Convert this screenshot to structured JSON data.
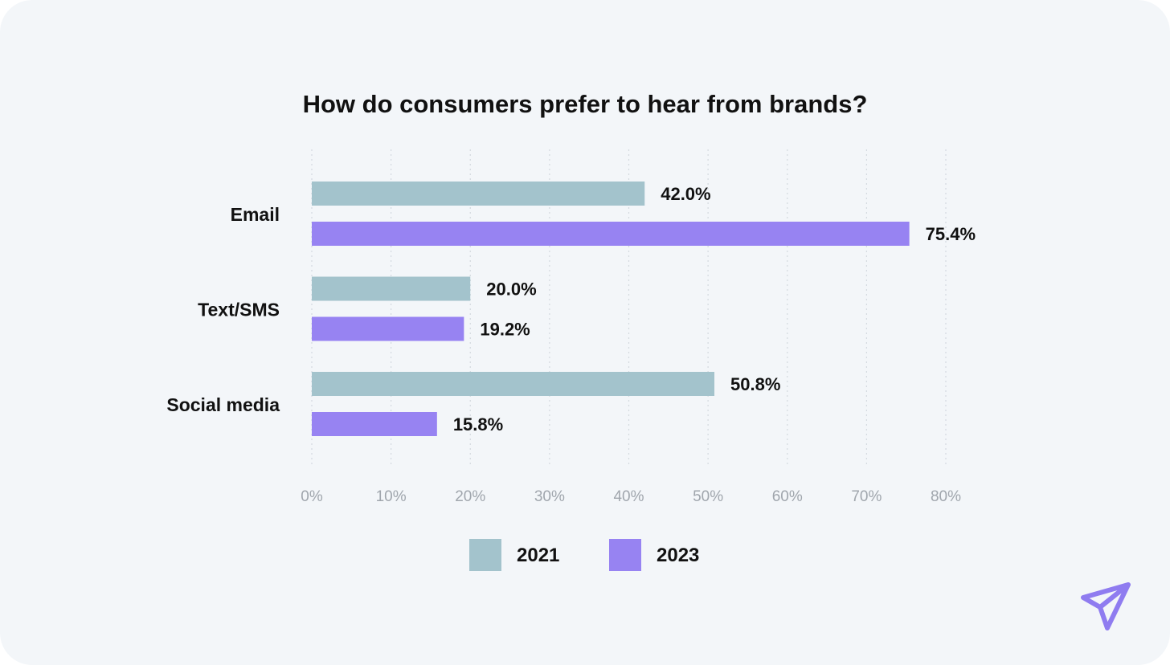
{
  "chart_data": {
    "type": "bar",
    "orientation": "horizontal",
    "title": "How do consumers prefer to hear from brands?",
    "categories": [
      "Email",
      "Text/SMS",
      "Social media"
    ],
    "series": [
      {
        "name": "2021",
        "color": "#a3c3cc",
        "values": [
          42.0,
          20.0,
          50.8
        ],
        "labels": [
          "42.0%",
          "20.0%",
          "50.8%"
        ]
      },
      {
        "name": "2023",
        "color": "#9783f2",
        "values": [
          75.4,
          19.2,
          15.8
        ],
        "labels": [
          "75.4%",
          "19.2%",
          "15.8%"
        ]
      }
    ],
    "xlim": [
      0,
      80
    ],
    "xticks": [
      0,
      10,
      20,
      30,
      40,
      50,
      60,
      70,
      80
    ],
    "xtick_labels": [
      "0%",
      "10%",
      "20%",
      "30%",
      "40%",
      "50%",
      "60%",
      "70%",
      "80%"
    ],
    "xlabel": "",
    "ylabel": "",
    "grid": "vertical-dotted",
    "legend_position": "bottom"
  },
  "legend": {
    "items": [
      {
        "label": "2021",
        "color": "#a3c3cc"
      },
      {
        "label": "2023",
        "color": "#9783f2"
      }
    ]
  },
  "brand": {
    "logo_icon": "paper-plane-icon",
    "logo_color": "#8f7cf0"
  }
}
